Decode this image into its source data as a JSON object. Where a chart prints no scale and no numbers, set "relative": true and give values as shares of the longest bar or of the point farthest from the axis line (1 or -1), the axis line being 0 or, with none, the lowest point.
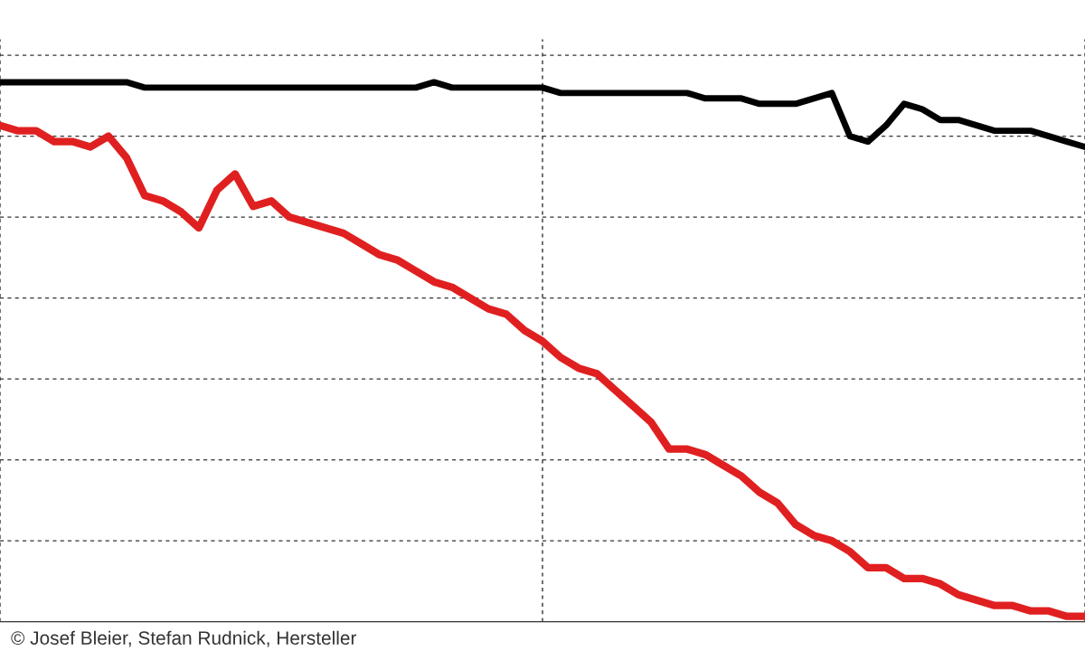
{
  "chart_data": {
    "type": "line",
    "relative": true,
    "grid": true,
    "marker": "none",
    "line_style": "solid",
    "categories": [
      null,
      null,
      null,
      null,
      null,
      null,
      null,
      null,
      null,
      null,
      null,
      null,
      null,
      null,
      null,
      null,
      null,
      null,
      null,
      null,
      null,
      null,
      null,
      null,
      null,
      null,
      null,
      null,
      null,
      null,
      null,
      null,
      null,
      null,
      null,
      null,
      null,
      null,
      null,
      null,
      null,
      null,
      null,
      null,
      null,
      null,
      null,
      null,
      null,
      null,
      null,
      null,
      null,
      null,
      null,
      null,
      null,
      null,
      null,
      null,
      null
    ],
    "series": [
      {
        "color": "#000000",
        "values": [
          1.0,
          1.0,
          1.0,
          1.0,
          1.0,
          1.0,
          1.0,
          1.0,
          0.99,
          0.99,
          0.99,
          0.99,
          0.99,
          0.99,
          0.99,
          0.99,
          0.99,
          0.99,
          0.99,
          0.99,
          0.99,
          0.99,
          0.99,
          0.99,
          1.0,
          0.99,
          0.99,
          0.99,
          0.99,
          0.99,
          0.99,
          0.98,
          0.98,
          0.98,
          0.98,
          0.98,
          0.98,
          0.98,
          0.98,
          0.97,
          0.97,
          0.97,
          0.96,
          0.96,
          0.96,
          0.97,
          0.98,
          0.9,
          0.89,
          0.92,
          0.96,
          0.95,
          0.93,
          0.93,
          0.92,
          0.91,
          0.91,
          0.91,
          0.9,
          0.89,
          0.88
        ]
      },
      {
        "color": "#e02020",
        "values": [
          0.92,
          0.91,
          0.91,
          0.89,
          0.89,
          0.88,
          0.9,
          0.86,
          0.79,
          0.78,
          0.76,
          0.73,
          0.8,
          0.83,
          0.77,
          0.78,
          0.75,
          0.74,
          0.73,
          0.72,
          0.7,
          0.68,
          0.67,
          0.65,
          0.63,
          0.62,
          0.6,
          0.58,
          0.57,
          0.54,
          0.52,
          0.49,
          0.47,
          0.46,
          0.43,
          0.4,
          0.37,
          0.32,
          0.32,
          0.31,
          0.29,
          0.27,
          0.24,
          0.22,
          0.18,
          0.16,
          0.15,
          0.13,
          0.1,
          0.1,
          0.08,
          0.08,
          0.07,
          0.05,
          0.04,
          0.03,
          0.03,
          0.02,
          0.02,
          0.01,
          0.01
        ]
      }
    ],
    "annotations": [
      "© Josef Bleier, Stefan Rudnick, Hersteller"
    ]
  }
}
